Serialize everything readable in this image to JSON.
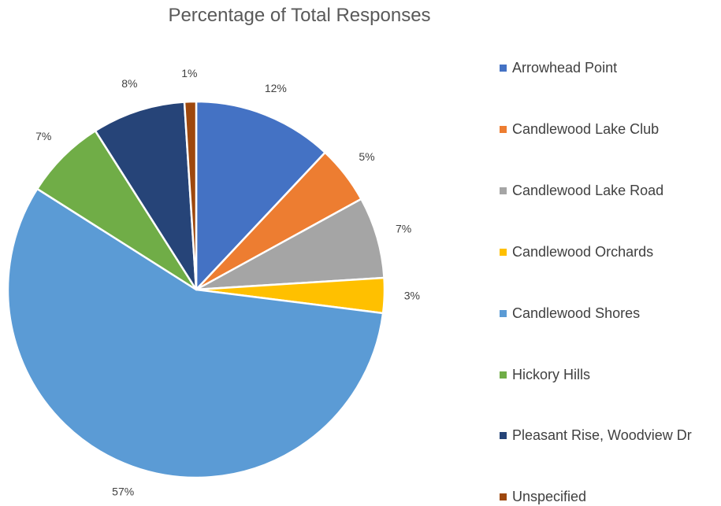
{
  "chart_data": {
    "type": "pie",
    "title": "Percentage of Total Responses",
    "legend_position": "right",
    "slices": [
      {
        "label": "Arrowhead Point",
        "value": 12,
        "display": "12%",
        "color": "#4472C4"
      },
      {
        "label": "Candlewood Lake Club",
        "value": 5,
        "display": "5%",
        "color": "#ED7D31"
      },
      {
        "label": "Candlewood Lake Road",
        "value": 7,
        "display": "7%",
        "color": "#A5A5A5"
      },
      {
        "label": "Candlewood Orchards",
        "value": 3,
        "display": "3%",
        "color": "#FFC000"
      },
      {
        "label": "Candlewood Shores",
        "value": 57,
        "display": "57%",
        "color": "#5B9BD5"
      },
      {
        "label": "Hickory Hills",
        "value": 7,
        "display": "7%",
        "color": "#70AD47"
      },
      {
        "label": "Pleasant Rise, Woodview Dr",
        "value": 8,
        "display": "8%",
        "color": "#264478"
      },
      {
        "label": "Unspecified",
        "value": 1,
        "display": "1%",
        "color": "#9E480E"
      }
    ]
  }
}
